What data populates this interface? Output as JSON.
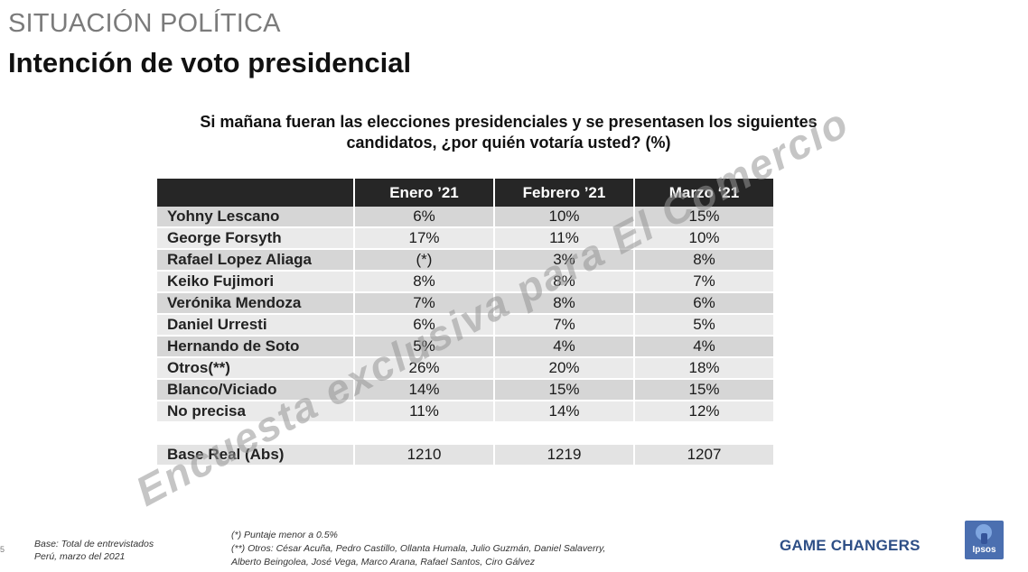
{
  "header": {
    "section": "SITUACIÓN POLÍTICA",
    "title": "Intención de voto presidencial"
  },
  "question": {
    "line1": "Si mañana fueran las elecciones presidenciales y se presentasen los siguientes",
    "line2": "candidatos, ¿por quién votaría usted? (%)"
  },
  "table": {
    "columns": [
      "",
      "Enero ’21",
      "Febrero ’21",
      "Marzo ‘21"
    ],
    "rows": [
      {
        "name": "Yohny Lescano",
        "values": [
          "6%",
          "10%",
          "15%"
        ]
      },
      {
        "name": "George Forsyth",
        "values": [
          "17%",
          "11%",
          "10%"
        ]
      },
      {
        "name": "Rafael Lopez Aliaga",
        "values": [
          "(*)",
          "3%",
          "8%"
        ]
      },
      {
        "name": "Keiko Fujimori",
        "values": [
          "8%",
          "8%",
          "7%"
        ]
      },
      {
        "name": "Verónika Mendoza",
        "values": [
          "7%",
          "8%",
          "6%"
        ]
      },
      {
        "name": "Daniel Urresti",
        "values": [
          "6%",
          "7%",
          "5%"
        ]
      },
      {
        "name": "Hernando de Soto",
        "values": [
          "5%",
          "4%",
          "4%"
        ]
      },
      {
        "name": "Otros(**)",
        "values": [
          "26%",
          "20%",
          "18%"
        ]
      },
      {
        "name": "Blanco/Viciado",
        "values": [
          "14%",
          "15%",
          "15%"
        ]
      },
      {
        "name": "No precisa",
        "values": [
          "11%",
          "14%",
          "12%"
        ]
      }
    ],
    "base": {
      "name": "Base Real (Abs)",
      "values": [
        "1210",
        "1219",
        "1207"
      ]
    }
  },
  "watermark": "Encuesta exclusiva para El Comercio",
  "footer": {
    "page_number": "5",
    "base_line1": "Base: Total de entrevistados",
    "base_line2": "Perú, marzo del 2021",
    "note1": "(*) Puntaje menor a 0.5%",
    "note2": "(**) Otros: César Acuña, Pedro Castillo, Ollanta Humala, Julio Guzmán, Daniel Salaverry,",
    "note3": "Alberto Beingolea, José Vega, Marco Arana, Rafael Santos, Ciro Gálvez",
    "brand": "GAME CHANGERS",
    "logo_text": "Ipsos"
  },
  "colors": {
    "header_bg": "#262626",
    "row_odd": "#d6d6d6",
    "row_even": "#eaeaea",
    "brand": "#2e4f86",
    "logo_bg": "#4b6fb0"
  }
}
